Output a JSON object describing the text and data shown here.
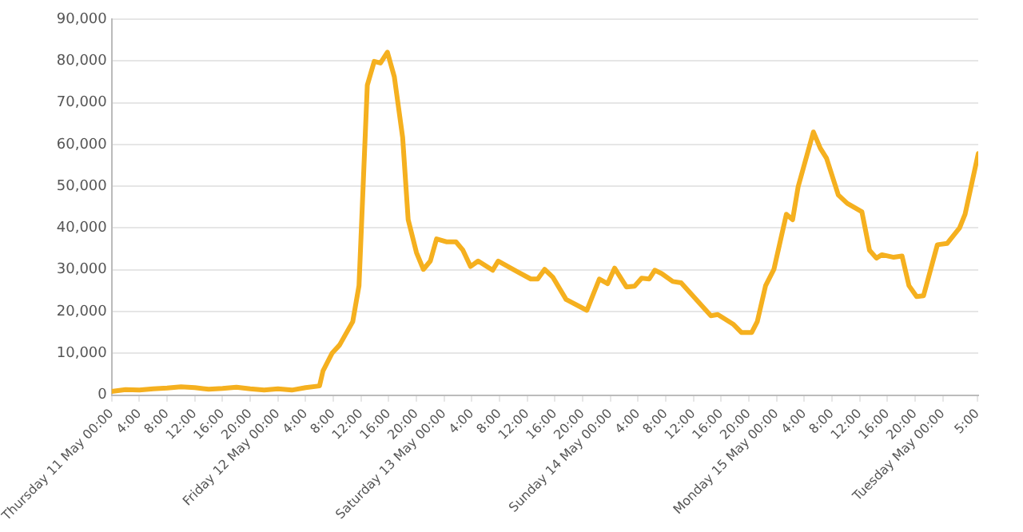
{
  "chart_data": {
    "type": "line",
    "x": [
      "--05-11T00:00",
      "--05-11T02:00",
      "--05-11T04:00",
      "--05-11T06:00",
      "--05-11T08:00",
      "--05-11T10:00",
      "--05-11T12:00",
      "--05-11T14:00",
      "--05-11T16:00",
      "--05-11T18:00",
      "--05-11T20:00",
      "--05-11T22:00",
      "--05-12T00:00",
      "--05-12T02:00",
      "--05-12T04:00",
      "--05-12T06:00",
      "--05-12T06:30",
      "--05-12T07:48",
      "--05-12T08:54",
      "--05-12T10:48",
      "--05-12T11:42",
      "--05-12T12:54",
      "--05-12T13:54",
      "--05-12T14:48",
      "--05-12T15:48",
      "--05-12T16:48",
      "--05-12T18:00",
      "--05-12T18:48",
      "--05-12T20:00",
      "--05-12T21:00",
      "--05-12T22:00",
      "--05-12T22:54",
      "--05-13T00:18",
      "--05-13T01:42",
      "--05-13T02:42",
      "--05-13T03:48",
      "--05-13T04:54",
      "--05-13T07:00",
      "--05-13T07:48",
      "--05-13T10:36",
      "--05-13T12:30",
      "--05-13T13:30",
      "--05-13T14:30",
      "--05-13T15:42",
      "--05-13T17:36",
      "--05-13T20:36",
      "--05-13T22:24",
      "--05-13T23:36",
      "--05-14T00:36",
      "--05-14T02:18",
      "--05-14T03:30",
      "--05-14T04:30",
      "--05-14T05:36",
      "--05-14T06:24",
      "--05-14T07:24",
      "--05-14T09:00",
      "--05-14T10:12",
      "--05-14T14:30",
      "--05-14T15:30",
      "--05-14T17:42",
      "--05-14T18:54",
      "--05-14T20:24",
      "--05-14T21:12",
      "--05-14T22:24",
      "--05-14T23:36",
      "--05-15T01:24",
      "--05-15T02:18",
      "--05-15T03:06",
      "--05-15T05:18",
      "--05-15T06:18",
      "--05-15T07:12",
      "--05-15T08:54",
      "--05-15T10:12",
      "--05-15T12:18",
      "--05-15T13:24",
      "--05-15T14:24",
      "--05-15T15:12",
      "--05-15T16:54",
      "--05-15T18:06",
      "--05-15T19:06",
      "--05-15T20:12",
      "--05-15T21:12",
      "--05-15T23:12",
      "--05-16T00:36",
      "--05-16T02:24",
      "--05-16T03:12",
      "--05-16T05:06"
    ],
    "series": [
      {
        "color": "#f5b01f",
        "values": [
          900,
          1300,
          1200,
          1500,
          1700,
          2000,
          1800,
          1400,
          1600,
          1900,
          1500,
          1200,
          1500,
          1200,
          1800,
          2200,
          5800,
          10000,
          12000,
          17600,
          26200,
          74200,
          79900,
          79500,
          82100,
          76200,
          61700,
          42000,
          34100,
          30100,
          32100,
          37400,
          36700,
          36700,
          34700,
          30800,
          32100,
          29900,
          32100,
          29500,
          27800,
          27800,
          30100,
          28200,
          22900,
          20300,
          27800,
          26700,
          30400,
          25900,
          26100,
          28000,
          27800,
          29900,
          29100,
          27200,
          26900,
          19000,
          19300,
          17000,
          15000,
          15000,
          17600,
          26200,
          30100,
          43300,
          42000,
          49900,
          63000,
          59100,
          56700,
          47900,
          45900,
          43900,
          34700,
          32800,
          33600,
          33000,
          33300,
          26200,
          23600,
          23800,
          36000,
          36300,
          40000,
          43300,
          57800
        ]
      }
    ],
    "xlim": [
      "--05-11T00:00",
      "--05-16T05:06"
    ],
    "xticks": [
      {
        "value": "--05-11T00:00",
        "label": "Thursday 11 May 00:00"
      },
      {
        "value": "--05-11T04:00",
        "label": "4:00"
      },
      {
        "value": "--05-11T08:00",
        "label": "8:00"
      },
      {
        "value": "--05-11T12:00",
        "label": "12:00"
      },
      {
        "value": "--05-11T16:00",
        "label": "16:00"
      },
      {
        "value": "--05-11T20:00",
        "label": "20:00"
      },
      {
        "value": "--05-12T00:00",
        "label": "Friday 12 May 00:00"
      },
      {
        "value": "--05-12T04:00",
        "label": "4:00"
      },
      {
        "value": "--05-12T08:00",
        "label": "8:00"
      },
      {
        "value": "--05-12T12:00",
        "label": "12:00"
      },
      {
        "value": "--05-12T16:00",
        "label": "16:00"
      },
      {
        "value": "--05-12T20:00",
        "label": "20:00"
      },
      {
        "value": "--05-13T00:00",
        "label": "Saturday 13 May 00:00"
      },
      {
        "value": "--05-13T04:00",
        "label": "4:00"
      },
      {
        "value": "--05-13T08:00",
        "label": "8:00"
      },
      {
        "value": "--05-13T12:00",
        "label": "12:00"
      },
      {
        "value": "--05-13T16:00",
        "label": "16:00"
      },
      {
        "value": "--05-13T20:00",
        "label": "20:00"
      },
      {
        "value": "--05-14T00:00",
        "label": "Sunday 14 May 00:00"
      },
      {
        "value": "--05-14T04:00",
        "label": "4:00"
      },
      {
        "value": "--05-14T08:00",
        "label": "8:00"
      },
      {
        "value": "--05-14T12:00",
        "label": "12:00"
      },
      {
        "value": "--05-14T16:00",
        "label": "16:00"
      },
      {
        "value": "--05-14T20:00",
        "label": "20:00"
      },
      {
        "value": "--05-15T00:00",
        "label": "Monday 15 May 00:00"
      },
      {
        "value": "--05-15T04:00",
        "label": "4:00"
      },
      {
        "value": "--05-15T08:00",
        "label": "8:00"
      },
      {
        "value": "--05-15T12:00",
        "label": "12:00"
      },
      {
        "value": "--05-15T16:00",
        "label": "16:00"
      },
      {
        "value": "--05-15T20:00",
        "label": "20:00"
      },
      {
        "value": "--05-16T00:00",
        "label": "Tuesday May 00:00"
      },
      {
        "value": "--05-16T05:00",
        "label": "5:00"
      }
    ],
    "ylim": [
      0,
      90000
    ],
    "yticks": [
      0,
      {
        "value": 10000,
        "label": "10,000"
      },
      {
        "value": 20000,
        "label": "20,000"
      },
      {
        "value": 30000,
        "label": "30,000"
      },
      {
        "value": 40000,
        "label": "40,000"
      },
      {
        "value": 50000,
        "label": "50,000"
      },
      {
        "value": 60000,
        "label": "60,000"
      },
      {
        "value": 70000,
        "label": "70,000"
      },
      {
        "value": 80000,
        "label": "80,000"
      },
      {
        "value": 90000,
        "label": "90,000"
      }
    ],
    "grid": "y",
    "legend": false,
    "marker": "none",
    "line_style": "solid"
  }
}
